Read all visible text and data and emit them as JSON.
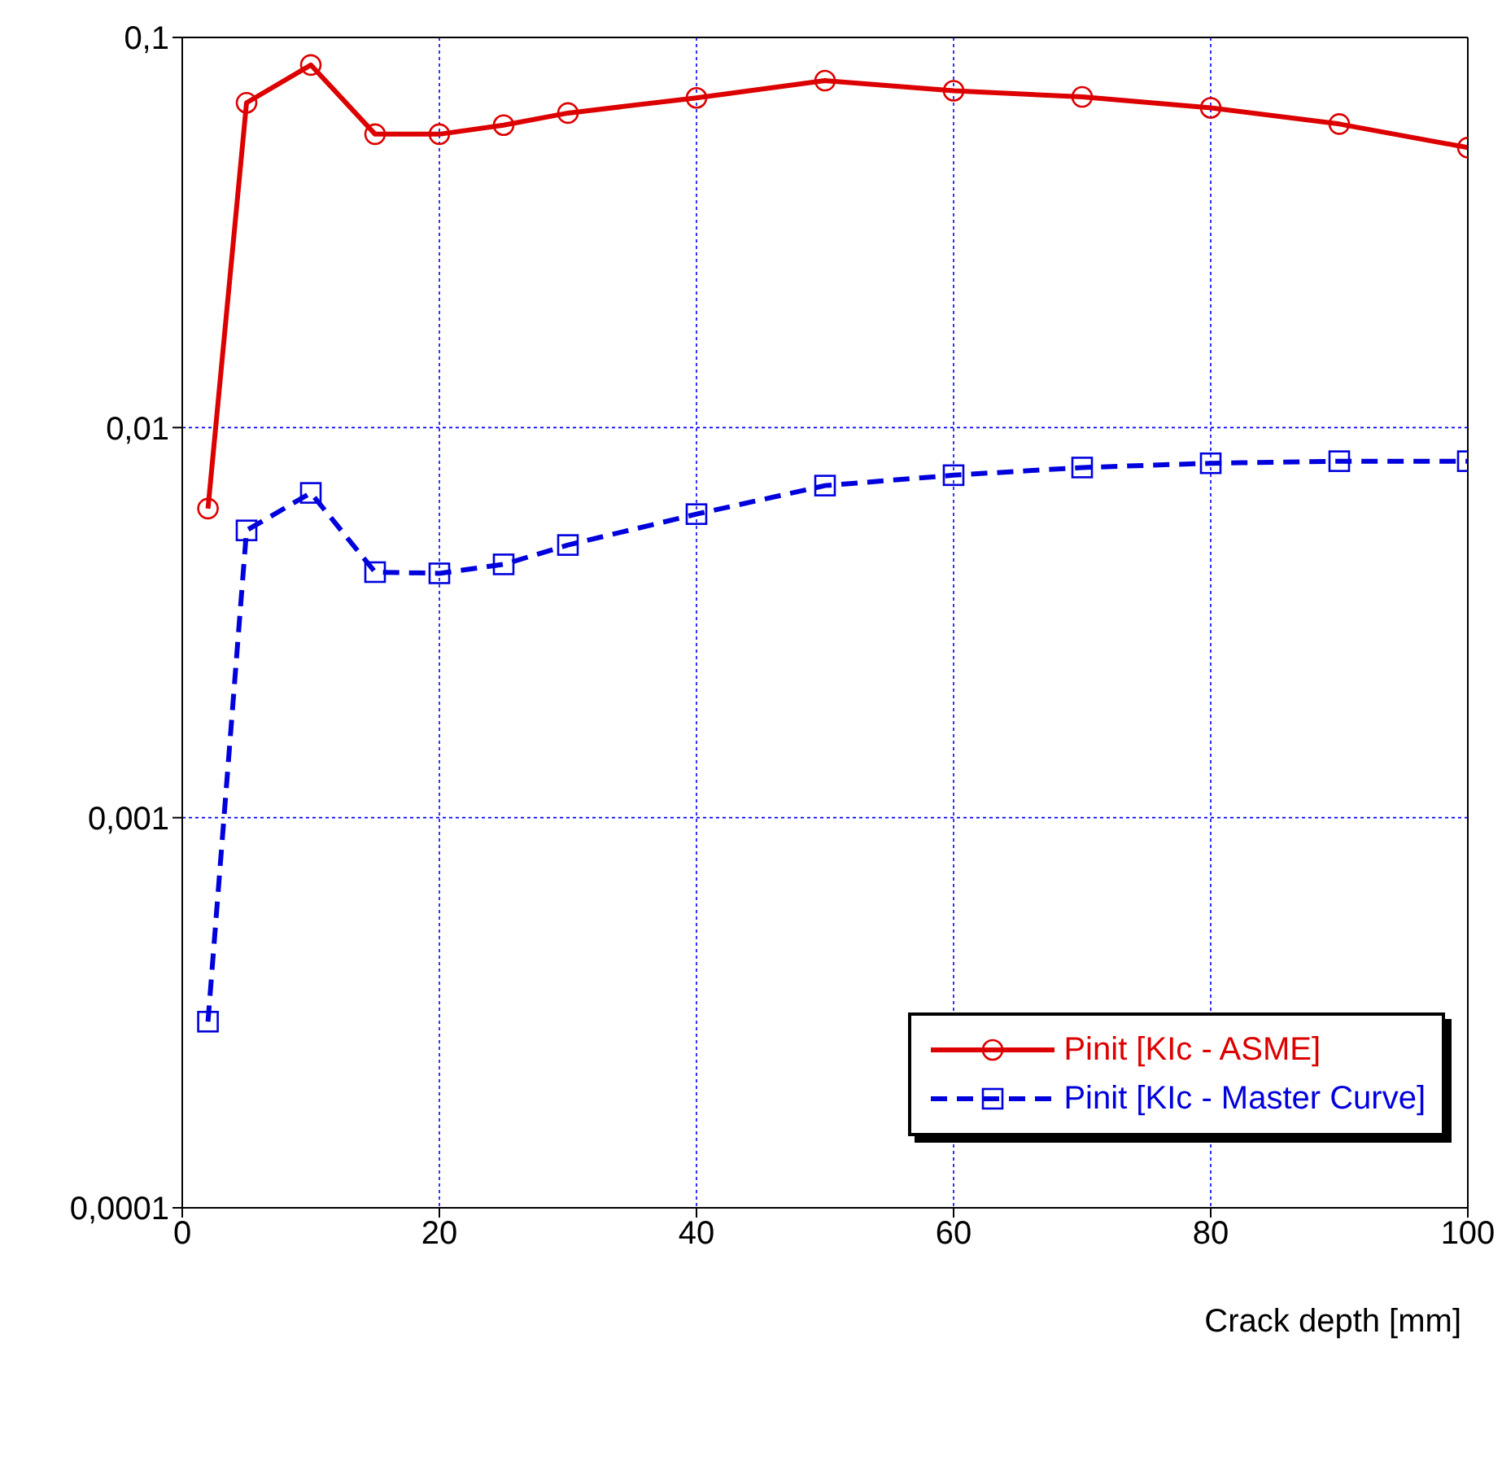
{
  "chart_data": {
    "type": "line",
    "xlabel": "Crack depth [mm]",
    "x": [
      2,
      5,
      10,
      15,
      20,
      25,
      30,
      40,
      50,
      60,
      70,
      80,
      90,
      100
    ],
    "series": [
      {
        "name": "Pinit [KIc - ASME]",
        "color": "#dd0000",
        "marker": "circle",
        "line_style": "solid",
        "values": [
          0.0062,
          0.068,
          0.085,
          0.0565,
          0.0565,
          0.0596,
          0.064,
          0.07,
          0.0775,
          0.073,
          0.0704,
          0.066,
          0.06,
          0.0522
        ]
      },
      {
        "name": "Pinit [KIc - Master Curve]",
        "color": "#0000dd",
        "marker": "square",
        "line_style": "dashed",
        "values": [
          0.0003,
          0.00545,
          0.0068,
          0.00426,
          0.00423,
          0.00446,
          0.005,
          0.006,
          0.0071,
          0.00755,
          0.0079,
          0.0081,
          0.0082,
          0.0082
        ]
      }
    ],
    "xlim": [
      0,
      100
    ],
    "xticks": [
      0,
      20,
      40,
      60,
      80,
      100
    ],
    "ylim": [
      0.0001,
      0.1
    ],
    "yticks": [
      {
        "value": 0.0001,
        "label": "0,0001"
      },
      {
        "value": 0.001,
        "label": "0,001"
      },
      {
        "value": 0.01,
        "label": "0,01"
      },
      {
        "value": 0.1,
        "label": "0,1"
      }
    ],
    "log": "y",
    "grid": true,
    "legend": "bottom right"
  }
}
